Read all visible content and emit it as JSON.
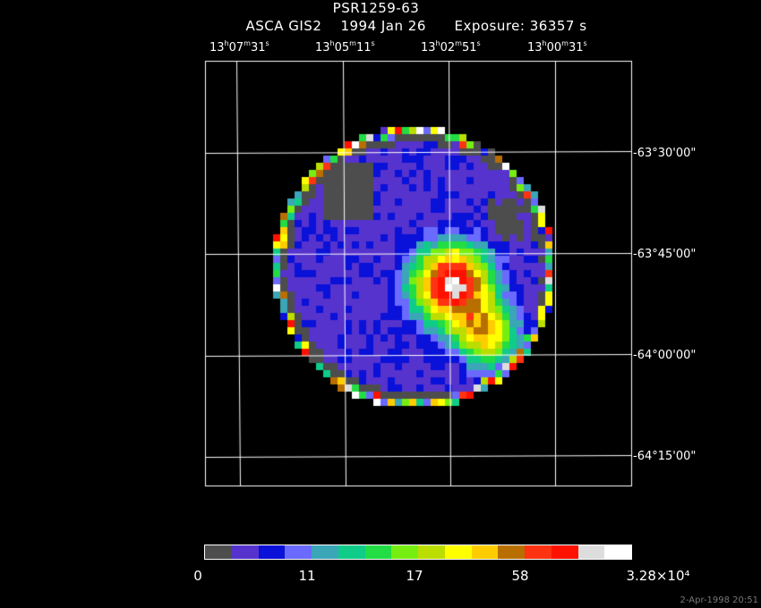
{
  "title": "PSR1259-63",
  "subtitle": "ASCA GIS2    1994 Jan 26      Exposure: 36357 s",
  "ra_labels": [
    {
      "h": "13",
      "hu": "h",
      "m": "07",
      "mu": "m",
      "s": "31",
      "su": "s"
    },
    {
      "h": "13",
      "hu": "h",
      "m": "05",
      "mu": "m",
      "s": "11",
      "su": "s"
    },
    {
      "h": "13",
      "hu": "h",
      "m": "02",
      "mu": "m",
      "s": "51",
      "su": "s"
    },
    {
      "h": "13",
      "hu": "h",
      "m": "00",
      "mu": "m",
      "s": "31",
      "su": "s"
    }
  ],
  "dec_labels": [
    "-63°30'00\"",
    "-63°45'00\"",
    "-64°00'00\"",
    "-64°15'00\""
  ],
  "colorbar": {
    "colors": [
      "#4d4d4d",
      "#5533cc",
      "#0a11d8",
      "#6a6aff",
      "#3aa6b8",
      "#0fcc88",
      "#22dd44",
      "#77ee11",
      "#bbdd00",
      "#ffff00",
      "#ffcc00",
      "#b86f00",
      "#ff3311",
      "#ff1100",
      "#dddddd",
      "#ffffff"
    ],
    "labels": [
      "0",
      "11",
      "17",
      "58",
      "3.28×10⁴"
    ]
  },
  "timestamp": "2-Apr-1998 20:51"
}
